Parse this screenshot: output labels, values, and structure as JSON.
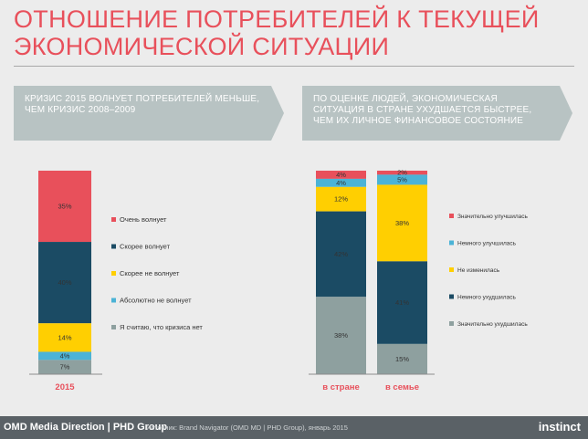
{
  "title": "ОТНОШЕНИЕ ПОТРЕБИТЕЛЕЙ К ТЕКУЩЕЙ\nЭКОНОМИЧЕСКОЙ СИТУАЦИИ",
  "panels": {
    "left_banner": "КРИЗИС 2015 ВОЛНУЕТ ПОТРЕБИТЕЛЕЙ МЕНЬШЕ,\nЧЕМ КРИЗИС 2008–2009",
    "right_banner": "ПО ОЦЕНКЕ ЛЮДЕЙ, ЭКОНОМИЧЕСКАЯ\nСИТУАЦИЯ В СТРАНЕ УХУДШАЕТСЯ БЫСТРЕЕ,\nЧЕМ ИХ ЛИЧНОЕ ФИНАНСОВОЕ СОСТОЯНИЕ"
  },
  "chart_data": [
    {
      "type": "bar",
      "stacked": true,
      "categories": [
        "2015"
      ],
      "series": [
        {
          "name": "Очень волнует",
          "color": "#e8505b",
          "values": [
            35
          ]
        },
        {
          "name": "Скорее волнует",
          "color": "#1b4b64",
          "values": [
            40
          ]
        },
        {
          "name": "Скорее не волнует",
          "color": "#ffcf01",
          "values": [
            14
          ]
        },
        {
          "name": "Абсолютно не волнует",
          "color": "#4bb3d6",
          "values": [
            4
          ]
        },
        {
          "name": "Я считаю, что кризиса нет",
          "color": "#8ea09f",
          "values": [
            7
          ]
        }
      ],
      "value_suffix": "%",
      "legend_placement": "right"
    },
    {
      "type": "bar",
      "stacked": true,
      "categories": [
        "в стране",
        "в семье"
      ],
      "series": [
        {
          "name": "Значительно улучшилась",
          "color": "#e8505b",
          "values": [
            4,
            2
          ]
        },
        {
          "name": "Немного улучшилась",
          "color": "#4bb3d6",
          "values": [
            4,
            5
          ]
        },
        {
          "name": "Не изменилась",
          "color": "#ffcf01",
          "values": [
            12,
            38
          ]
        },
        {
          "name": "Немного ухудшилась",
          "color": "#1b4b64",
          "values": [
            42,
            41
          ]
        },
        {
          "name": "Значительно ухудшилась",
          "color": "#8ea09f",
          "values": [
            38,
            15
          ]
        }
      ],
      "value_suffix": "%",
      "legend_placement": "right"
    }
  ],
  "footer": {
    "brand": "OMD Media Direction | PHD Group",
    "source": "Источник: Brand Navigator (OMD MD | PHD Group), январь 2015",
    "logo": "instinct"
  },
  "colors": {
    "accent": "#e8505b",
    "axis": "#8c8c8c",
    "category_label": "#e8505b"
  }
}
